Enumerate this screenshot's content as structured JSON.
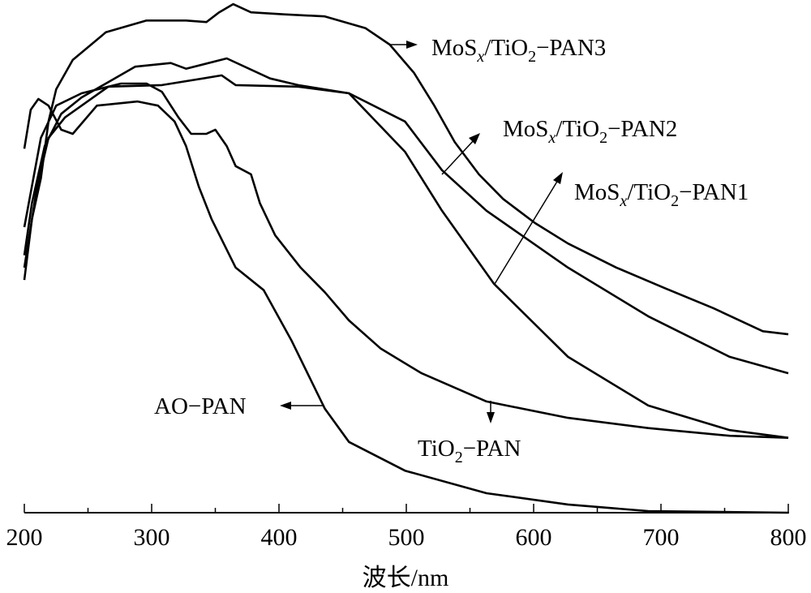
{
  "chart_data": {
    "type": "line",
    "title": "",
    "xlabel": "波长/nm",
    "ylabel": "",
    "xlim": [
      200,
      800
    ],
    "ylim": [
      0,
      100
    ],
    "x_ticks": [
      200,
      300,
      400,
      500,
      600,
      700,
      800
    ],
    "y_units": "arbitrary (absorbance, unlabeled axis)",
    "grid": false,
    "legend": "inline annotations with arrows",
    "series": [
      {
        "name": "MoSx/TiO2-PAN3",
        "label_parts": [
          "MoS",
          "x",
          "/TiO",
          "2",
          "−PAN3"
        ],
        "x": [
          200,
          206,
          213,
          219,
          225,
          238,
          264,
          296,
          327,
          343,
          353,
          364,
          378,
          404,
          436,
          468,
          487,
          506,
          522,
          538,
          557,
          576,
          601,
          627,
          665,
          703,
          741,
          780,
          800
        ],
        "y": [
          45.4,
          57.3,
          65.2,
          76.3,
          82.6,
          88.3,
          93.7,
          96.0,
          96.0,
          95.7,
          97.6,
          99.2,
          97.6,
          97.2,
          96.8,
          94.5,
          91.3,
          85.8,
          79.4,
          72.3,
          66.0,
          61.2,
          56.5,
          52.5,
          47.8,
          43.8,
          39.9,
          35.4,
          34.8
        ]
      },
      {
        "name": "MoSx/TiO2-PAN2",
        "label_parts": [
          "MoS",
          "x",
          "/TiO",
          "2",
          "−PAN2"
        ],
        "x": [
          200,
          206,
          216,
          229,
          245,
          287,
          315,
          327,
          359,
          393,
          415,
          455,
          499,
          528,
          563,
          627,
          690,
          754,
          800
        ],
        "y": [
          50.2,
          60.4,
          71.5,
          77.8,
          81.0,
          87.0,
          87.7,
          86.6,
          88.6,
          84.7,
          83.4,
          81.8,
          76.3,
          66.8,
          58.9,
          47.8,
          38.3,
          30.4,
          27.2
        ]
      },
      {
        "name": "MoSx/TiO2-PAN1",
        "label_parts": [
          "MoS",
          "x",
          "/TiO",
          "2",
          "−PAN1"
        ],
        "x": [
          200,
          210,
          219,
          232,
          266,
          308,
          355,
          366,
          415,
          455,
          499,
          528,
          569,
          627,
          690,
          754,
          800
        ],
        "y": [
          47.8,
          63.6,
          73.1,
          77.1,
          83.1,
          83.4,
          85.3,
          83.4,
          83.1,
          81.8,
          70.4,
          58.9,
          44.6,
          30.4,
          20.9,
          16.1,
          14.6
        ]
      },
      {
        "name": "TiO2-PAN",
        "label_parts": [
          "TiO",
          "2",
          "−PAN"
        ],
        "x": [
          200,
          213,
          225,
          245,
          276,
          296,
          308,
          321,
          331,
          343,
          350,
          359,
          366,
          378,
          385,
          397,
          417,
          436,
          455,
          480,
          512,
          563,
          627,
          690,
          754,
          800
        ],
        "y": [
          55.7,
          73.1,
          79.4,
          81.8,
          83.7,
          83.7,
          82.1,
          77.1,
          73.9,
          73.9,
          74.7,
          71.5,
          67.6,
          66.0,
          60.4,
          54.1,
          47.8,
          43.0,
          37.5,
          32.0,
          27.2,
          21.7,
          18.5,
          16.5,
          15.0,
          14.6
        ]
      },
      {
        "name": "AO-PAN",
        "label_parts": [
          "AO−PAN"
        ],
        "x": [
          200,
          205,
          211,
          219,
          229,
          238,
          257,
          289,
          305,
          318,
          327,
          337,
          347,
          366,
          388,
          410,
          436,
          455,
          499,
          563,
          627,
          690,
          800
        ],
        "y": [
          71.0,
          78.6,
          80.7,
          79.4,
          74.7,
          73.9,
          79.4,
          80.2,
          79.4,
          76.3,
          71.5,
          63.6,
          57.3,
          47.8,
          43.4,
          33.5,
          20.3,
          13.8,
          8.2,
          3.8,
          1.6,
          0.3,
          0.0
        ]
      }
    ]
  }
}
